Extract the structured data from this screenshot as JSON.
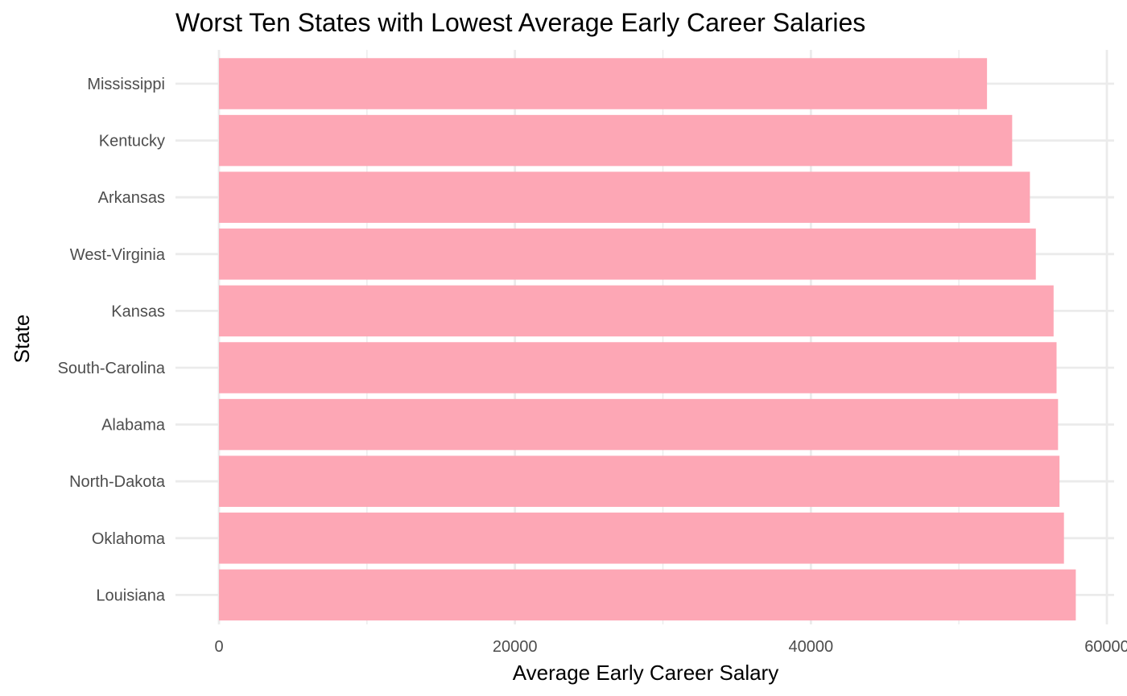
{
  "chart_data": {
    "type": "bar",
    "orientation": "horizontal",
    "title": "Worst Ten States with Lowest Average Early Career Salaries",
    "xlabel": "Average Early Career Salary",
    "ylabel": "State",
    "categories": [
      "Mississippi",
      "Kentucky",
      "Arkansas",
      "West-Virginia",
      "Kansas",
      "South-Carolina",
      "Alabama",
      "North-Dakota",
      "Oklahoma",
      "Louisiana"
    ],
    "values": [
      51900,
      53600,
      54800,
      55200,
      56400,
      56600,
      56700,
      56800,
      57100,
      57900
    ],
    "xlim": [
      0,
      60000
    ],
    "xticks": [
      0,
      20000,
      40000,
      60000
    ],
    "xtick_labels": [
      "0",
      "20000",
      "40000",
      "60000"
    ],
    "grid": true,
    "bar_color": "#fda7b5"
  }
}
